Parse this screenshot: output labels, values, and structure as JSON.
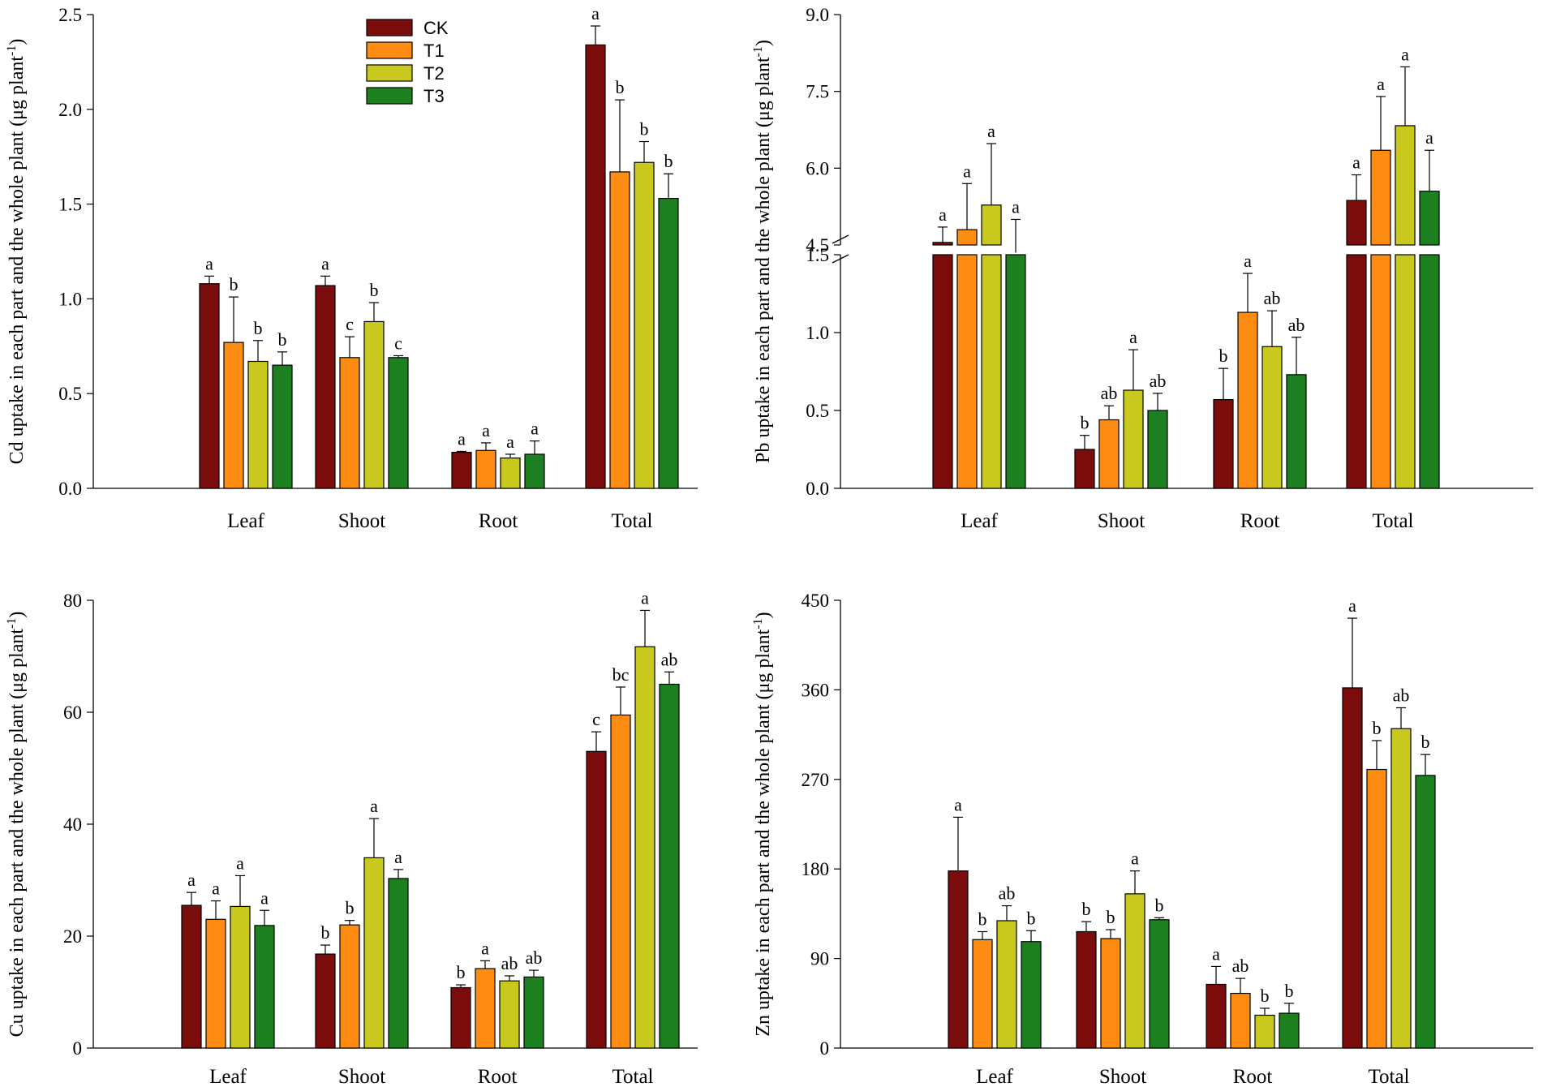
{
  "colors": {
    "CK": "#7a0c0c",
    "T1": "#ff8c12",
    "T2": "#c8c81e",
    "T3": "#1d8020"
  },
  "legend": [
    "CK",
    "T1",
    "T2",
    "T3"
  ],
  "chart_data": [
    {
      "type": "bar",
      "title": "",
      "ylabel": "Cd uptake in each part and the whole plant (μg plant",
      "ylabel_sup": "-1",
      "ylabel_end": ")",
      "categories": [
        "Leaf",
        "Shoot",
        "Root",
        "Total"
      ],
      "ylim": [
        0,
        2.5
      ],
      "yticks": [
        "0.0",
        "0.5",
        "1.0",
        "1.5",
        "2.0",
        "2.5"
      ],
      "series": [
        {
          "name": "CK",
          "values": [
            1.08,
            1.07,
            0.19,
            2.34
          ],
          "errors": [
            0.04,
            0.05,
            0.005,
            0.1
          ],
          "letters": [
            "a",
            "a",
            "a",
            "a"
          ]
        },
        {
          "name": "T1",
          "values": [
            0.77,
            0.69,
            0.2,
            1.67
          ],
          "errors": [
            0.24,
            0.11,
            0.04,
            0.38
          ],
          "letters": [
            "b",
            "c",
            "a",
            "b"
          ]
        },
        {
          "name": "T2",
          "values": [
            0.67,
            0.88,
            0.16,
            1.72
          ],
          "errors": [
            0.11,
            0.1,
            0.02,
            0.11
          ],
          "letters": [
            "b",
            "b",
            "a",
            "b"
          ]
        },
        {
          "name": "T3",
          "values": [
            0.65,
            0.69,
            0.18,
            1.53
          ],
          "errors": [
            0.07,
            0.01,
            0.07,
            0.13
          ],
          "letters": [
            "b",
            "c",
            "a",
            "b"
          ]
        }
      ]
    },
    {
      "type": "bar",
      "title": "",
      "ylabel": "Pb uptake in each part and the whole plant (μg plant",
      "ylabel_sup": "-1",
      "ylabel_end": ")",
      "categories": [
        "Leaf",
        "Shoot",
        "Root",
        "Total"
      ],
      "ylim": [
        0,
        9.0
      ],
      "axis_break": {
        "lower": [
          0,
          1.5
        ],
        "upper": [
          4.5,
          9.0
        ]
      },
      "yticks": [
        "0.0",
        "0.5",
        "1.0",
        "1.5",
        "4.5",
        "6.0",
        "7.5",
        "9.0"
      ],
      "series": [
        {
          "name": "CK",
          "values": [
            4.55,
            0.25,
            0.57,
            5.37
          ],
          "errors": [
            0.3,
            0.09,
            0.2,
            0.5
          ],
          "letters": [
            "a",
            "b",
            "b",
            "a"
          ]
        },
        {
          "name": "T1",
          "values": [
            4.8,
            0.44,
            1.13,
            6.35
          ],
          "errors": [
            0.9,
            0.09,
            0.25,
            1.05
          ],
          "letters": [
            "a",
            "ab",
            "a",
            "a"
          ]
        },
        {
          "name": "T2",
          "values": [
            5.28,
            0.63,
            0.91,
            6.83
          ],
          "errors": [
            1.2,
            0.26,
            0.23,
            1.15
          ],
          "letters": [
            "a",
            "a",
            "ab",
            "a"
          ]
        },
        {
          "name": "T3",
          "values": [
            4.35,
            0.5,
            0.73,
            5.55
          ],
          "errors": [
            0.65,
            0.11,
            0.24,
            0.8
          ],
          "letters": [
            "a",
            "ab",
            "ab",
            "a"
          ]
        }
      ]
    },
    {
      "type": "bar",
      "title": "",
      "ylabel": "Cu uptake in each part and the whole plant (μg plant",
      "ylabel_sup": "-1",
      "ylabel_end": ")",
      "categories": [
        "Leaf",
        "Shoot",
        "Root",
        "Total"
      ],
      "ylim": [
        0,
        80
      ],
      "yticks": [
        "0",
        "20",
        "40",
        "60",
        "80"
      ],
      "series": [
        {
          "name": "CK",
          "values": [
            25.5,
            16.8,
            10.8,
            53
          ],
          "errors": [
            2.3,
            1.6,
            0.5,
            3.5
          ],
          "letters": [
            "a",
            "b",
            "b",
            "c"
          ]
        },
        {
          "name": "T1",
          "values": [
            23,
            22,
            14.2,
            59.5
          ],
          "errors": [
            3.3,
            0.8,
            1.4,
            5.0
          ],
          "letters": [
            "a",
            "b",
            "a",
            "bc"
          ]
        },
        {
          "name": "T2",
          "values": [
            25.3,
            34,
            12,
            71.7
          ],
          "errors": [
            5.5,
            7.0,
            0.9,
            6.5
          ],
          "letters": [
            "a",
            "a",
            "ab",
            "a"
          ]
        },
        {
          "name": "T3",
          "values": [
            21.9,
            30.3,
            12.7,
            65
          ],
          "errors": [
            2.7,
            1.6,
            1.2,
            2.2
          ],
          "letters": [
            "a",
            "a",
            "ab",
            "ab"
          ]
        }
      ]
    },
    {
      "type": "bar",
      "title": "",
      "ylabel": "Zn uptake in each part and the whole plant (μg plant",
      "ylabel_sup": "-1",
      "ylabel_end": ")",
      "categories": [
        "Leaf",
        "Shoot",
        "Root",
        "Total"
      ],
      "ylim": [
        0,
        450
      ],
      "yticks": [
        "0",
        "90",
        "180",
        "270",
        "360",
        "450"
      ],
      "series": [
        {
          "name": "CK",
          "values": [
            178,
            117,
            64,
            362
          ],
          "errors": [
            54,
            10,
            18,
            70
          ],
          "letters": [
            "a",
            "b",
            "a",
            "a"
          ]
        },
        {
          "name": "T1",
          "values": [
            109,
            110,
            55,
            280
          ],
          "errors": [
            8,
            9,
            15,
            29
          ],
          "letters": [
            "b",
            "b",
            "ab",
            "b"
          ]
        },
        {
          "name": "T2",
          "values": [
            128,
            155,
            33,
            321
          ],
          "errors": [
            15,
            23,
            7,
            21
          ],
          "letters": [
            "ab",
            "a",
            "b",
            "ab"
          ]
        },
        {
          "name": "T3",
          "values": [
            107,
            129,
            35,
            274
          ],
          "errors": [
            11,
            2,
            10,
            21
          ],
          "letters": [
            "b",
            "b",
            "b",
            "b"
          ]
        }
      ]
    }
  ]
}
